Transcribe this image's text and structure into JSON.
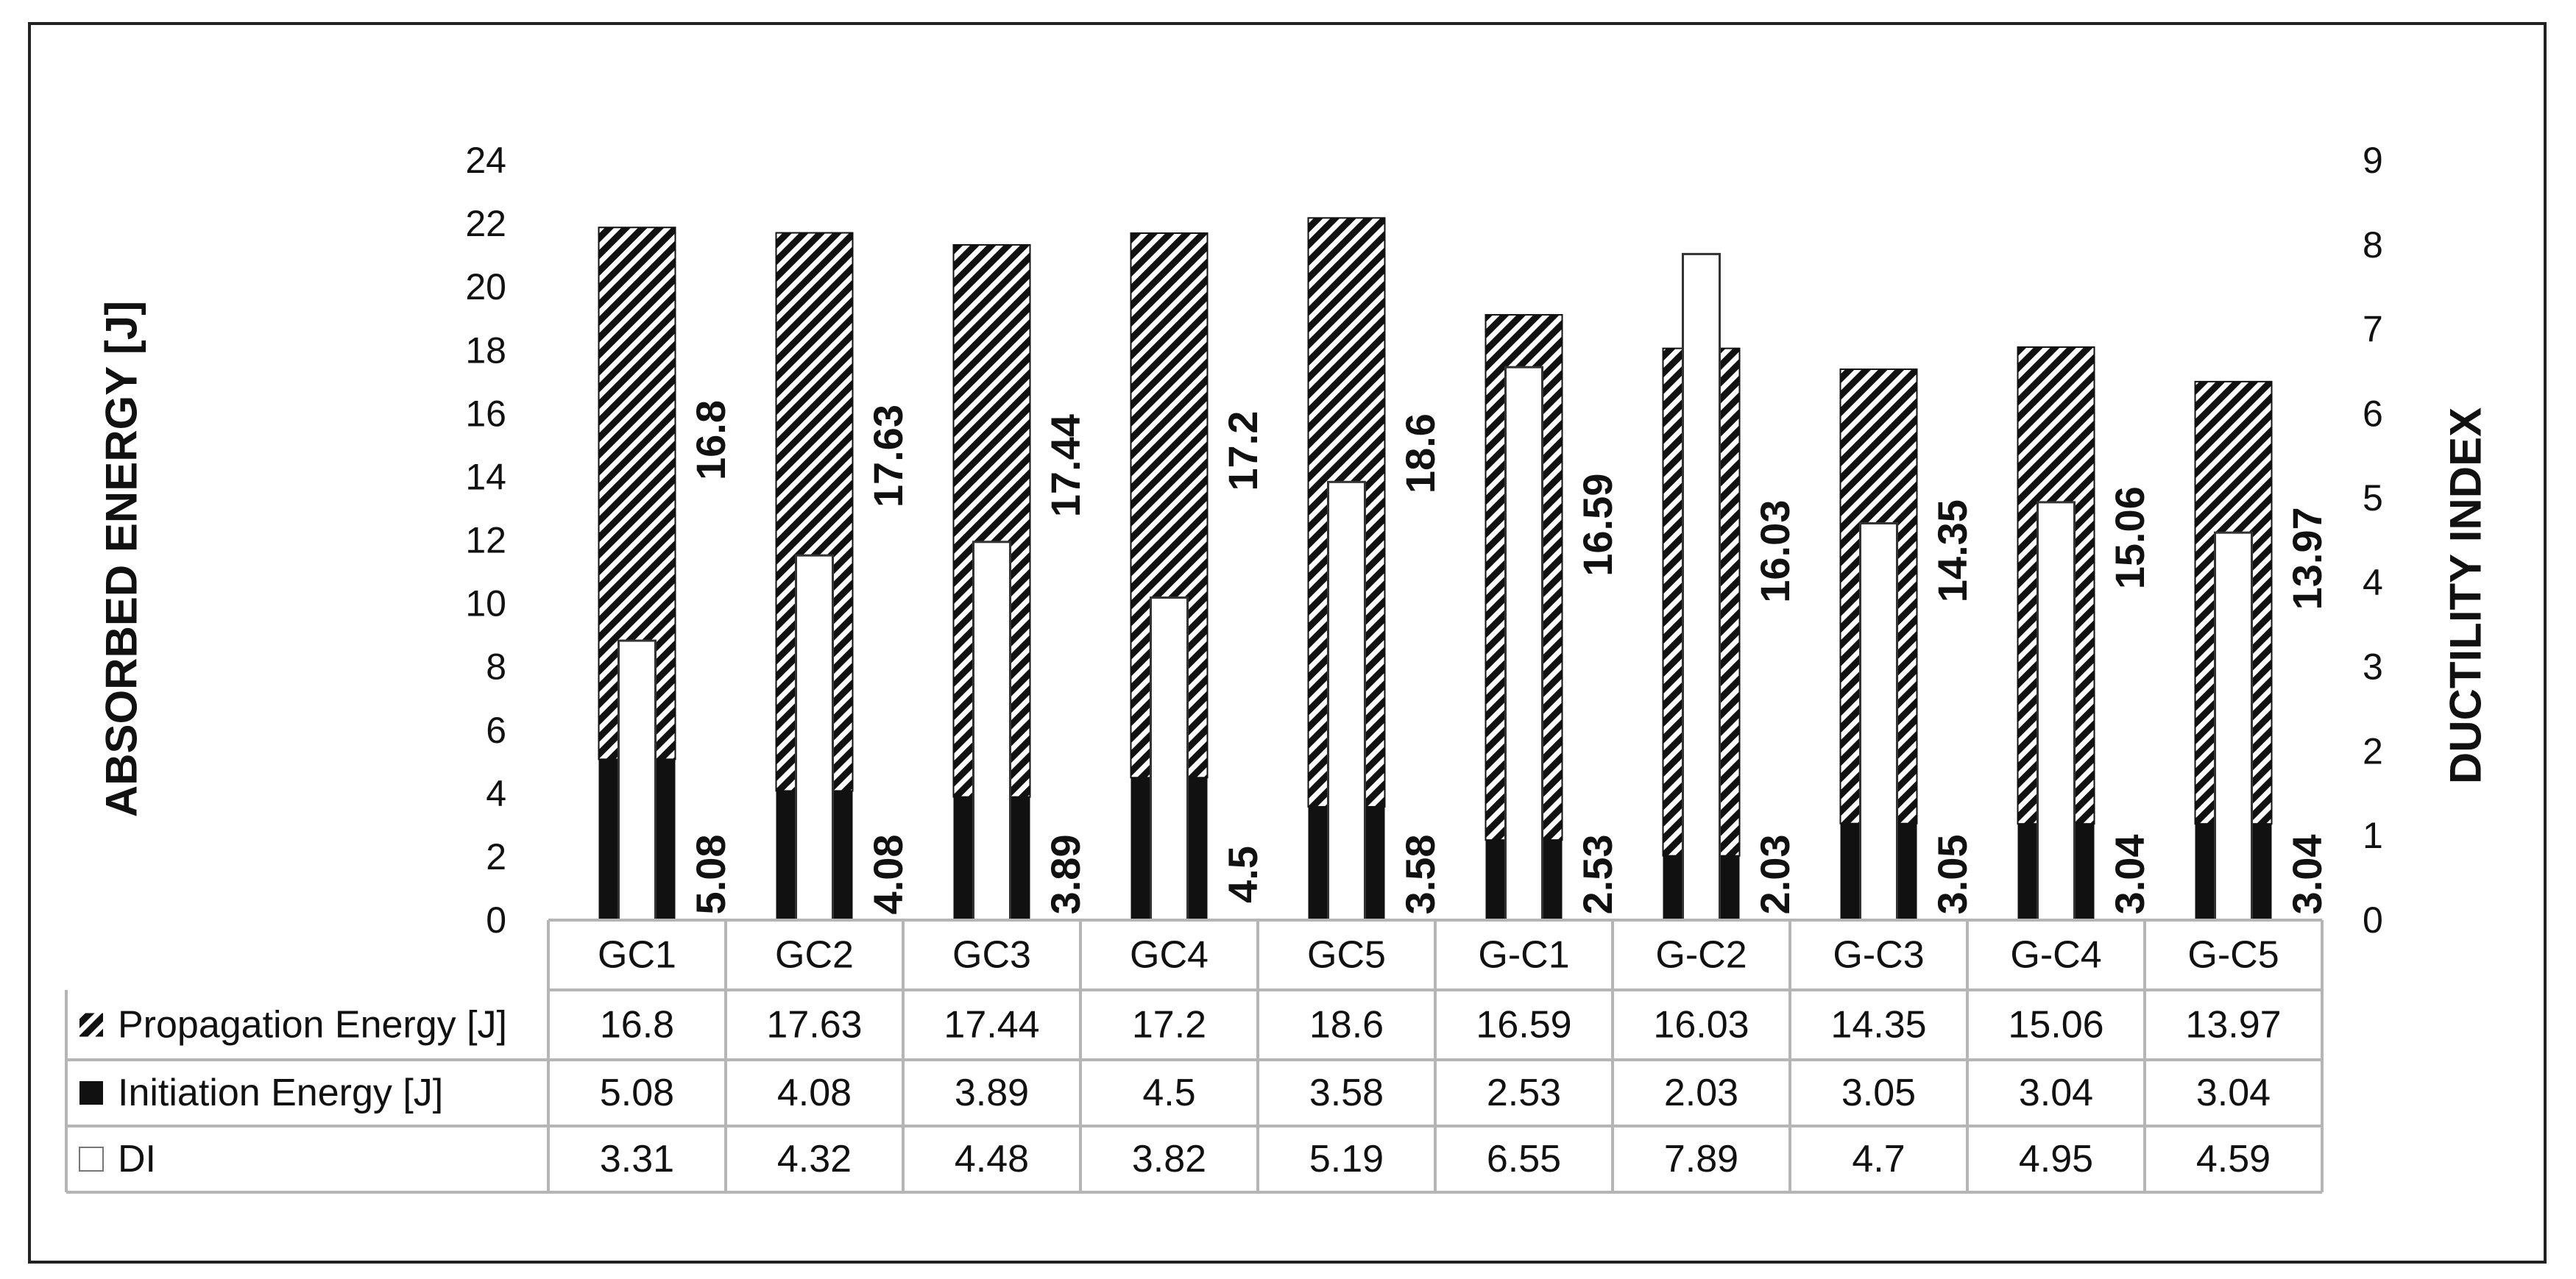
{
  "chart_data": {
    "type": "bar",
    "categories": [
      "GC1",
      "GC2",
      "GC3",
      "GC4",
      "GC5",
      "G-C1",
      "G-C2",
      "G-C3",
      "G-C4",
      "G-C5"
    ],
    "series": [
      {
        "name": "Propagation Energy [J]",
        "axis": "left",
        "stack": "energy",
        "pattern": "diagonal-hatch",
        "values": [
          16.8,
          17.63,
          17.44,
          17.2,
          18.6,
          16.59,
          16.03,
          14.35,
          15.06,
          13.97
        ]
      },
      {
        "name": "Initiation Energy [J]",
        "axis": "left",
        "stack": "energy",
        "pattern": "solid-black",
        "values": [
          5.08,
          4.08,
          3.89,
          4.5,
          3.58,
          2.53,
          2.03,
          3.05,
          3.04,
          3.04
        ]
      },
      {
        "name": "DI",
        "axis": "right",
        "pattern": "white",
        "values": [
          3.31,
          4.32,
          4.48,
          3.82,
          5.19,
          6.55,
          7.89,
          4.7,
          4.95,
          4.59
        ]
      }
    ],
    "y_left": {
      "label": "ABSORBED ENERGY [J]",
      "min": 0,
      "max": 24,
      "ticks": [
        "0",
        "2",
        "4",
        "6",
        "8",
        "10",
        "12",
        "14",
        "16",
        "18",
        "20",
        "22",
        "24"
      ]
    },
    "y_right": {
      "label": "DUCTILITY INDEX",
      "min": 0,
      "max": 9,
      "ticks": [
        "0",
        "1",
        "2",
        "3",
        "4",
        "5",
        "6",
        "7",
        "8",
        "9"
      ]
    },
    "data_labels": {
      "propagation": [
        "16.8",
        "17.63",
        "17.44",
        "17.2",
        "18.6",
        "16.59",
        "16.03",
        "14.35",
        "15.06",
        "13.97"
      ],
      "initiation": [
        "5.08",
        "4.08",
        "3.89",
        "4.5",
        "3.58",
        "2.53",
        "2.03",
        "3.05",
        "3.04",
        "3.04"
      ]
    },
    "data_table": {
      "rows": [
        {
          "legend": "Propagation Energy [J]",
          "values": [
            "16.8",
            "17.63",
            "17.44",
            "17.2",
            "18.6",
            "16.59",
            "16.03",
            "14.35",
            "15.06",
            "13.97"
          ]
        },
        {
          "legend": "Initiation Energy [J]",
          "values": [
            "5.08",
            "4.08",
            "3.89",
            "4.5",
            "3.58",
            "2.53",
            "2.03",
            "3.05",
            "3.04",
            "3.04"
          ]
        },
        {
          "legend": "DI",
          "values": [
            "3.31",
            "4.32",
            "4.48",
            "3.82",
            "5.19",
            "6.55",
            "7.89",
            "4.7",
            "4.95",
            "4.59"
          ]
        }
      ]
    },
    "grid": false,
    "legend": "data-table"
  }
}
